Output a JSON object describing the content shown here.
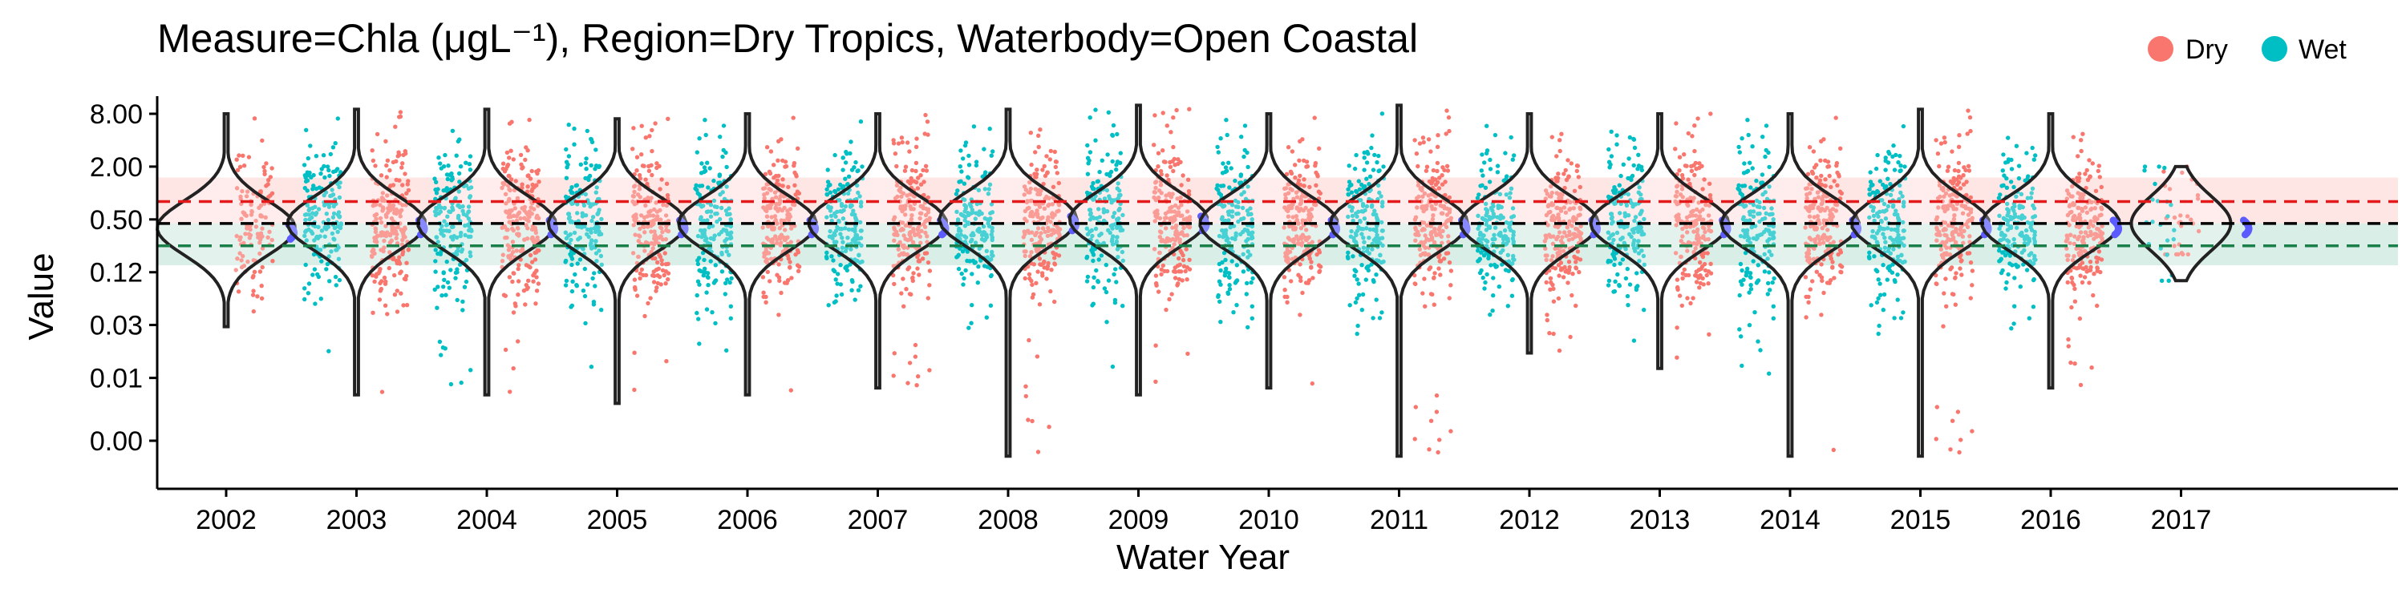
{
  "chart_data": {
    "type": "scatter",
    "title": "Measure=Chla (μgL⁻¹), Region=Dry Tropics, Waterbody=Open Coastal",
    "xlabel": "Water Year",
    "ylabel": "Value",
    "categories": [
      "2002",
      "2003",
      "2004",
      "2005",
      "2006",
      "2007",
      "2008",
      "2009",
      "2010",
      "2011",
      "2012",
      "2013",
      "2014",
      "2015",
      "2016",
      "2017"
    ],
    "y_scale": "log",
    "y_ticks": [
      {
        "value": 0.0015,
        "label": "0.00"
      },
      {
        "value": 0.0078,
        "label": "0.01"
      },
      {
        "value": 0.0313,
        "label": "0.03"
      },
      {
        "value": 0.125,
        "label": "0.12"
      },
      {
        "value": 0.5,
        "label": "0.50"
      },
      {
        "value": 2,
        "label": "2.00"
      },
      {
        "value": 8,
        "label": "8.00"
      }
    ],
    "ylim": [
      0.0008,
      14
    ],
    "grid": false,
    "legend": {
      "placement": "top-right",
      "items": [
        {
          "name": "Dry",
          "color": "#F8766D"
        },
        {
          "name": "Wet",
          "color": "#00BFC4"
        }
      ]
    },
    "reference_lines": [
      {
        "value": 0.8,
        "color": "#E31A1C",
        "dash": "dashed"
      },
      {
        "value": 0.45,
        "color": "#000000",
        "dash": "dashed"
      },
      {
        "value": 0.25,
        "color": "#1B7F4A",
        "dash": "dashed"
      }
    ],
    "reference_bands": [
      {
        "low": 0.45,
        "high": 1.5,
        "color": "#F8766D"
      },
      {
        "low": 0.15,
        "high": 0.45,
        "color": "#2CA07A"
      }
    ],
    "series": [
      {
        "name": "Dry",
        "color": "#F8766D",
        "median": [
          0.4,
          0.45,
          0.45,
          0.45,
          0.45,
          0.45,
          0.5,
          0.5,
          0.45,
          0.45,
          0.45,
          0.45,
          0.45,
          0.45,
          0.45,
          0.45
        ],
        "min": [
          0.03,
          0.005,
          0.005,
          0.004,
          0.005,
          0.006,
          0.001,
          0.005,
          0.006,
          0.001,
          0.015,
          0.01,
          0.001,
          0.001,
          0.006,
          0.2
        ],
        "max": [
          8,
          9,
          9,
          7,
          8,
          8,
          9,
          10,
          8,
          9,
          8,
          8,
          8,
          9,
          8,
          2
        ]
      },
      {
        "name": "Wet",
        "color": "#00BFC4",
        "median": [
          0.45,
          0.45,
          0.45,
          0.45,
          0.45,
          0.45,
          0.5,
          0.5,
          0.45,
          0.45,
          0.45,
          0.45,
          0.45,
          0.45,
          0.45,
          0.45
        ],
        "min": [
          0.2,
          0.01,
          0.005,
          0.01,
          0.01,
          0.05,
          0.02,
          0.01,
          0.02,
          0.02,
          0.03,
          0.02,
          0.005,
          0.02,
          0.02,
          0.1
        ],
        "max": [
          2,
          8,
          8,
          6,
          7,
          8,
          9,
          10,
          7,
          10,
          7,
          5,
          7,
          7,
          5,
          2
        ]
      }
    ]
  }
}
